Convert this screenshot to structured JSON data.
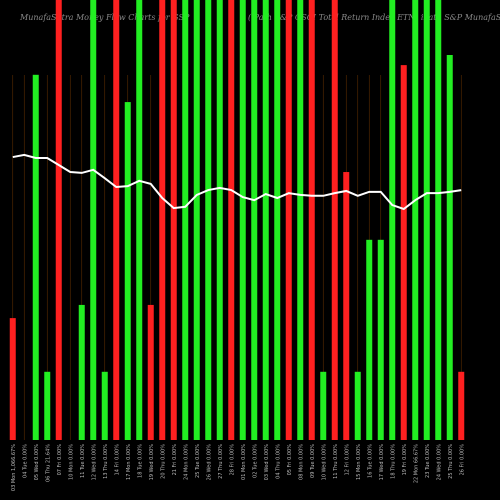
{
  "chart_data": {
    "type": "bar",
    "title": "MunafaSutra Money Flow Charts for GSP",
    "subtitle": "(iPath S&P GSCI Total Return Index ETN) iPath S&P MunafaSutra.com",
    "categories": [
      "03 Mon 1,066.67%",
      "04 Tue 0.00%",
      "05 Wed 0.00%",
      "06 Thu 21.64%",
      "07 Fri 0.00%",
      "10 Mon 0.00%",
      "11 Tue 0.00%",
      "12 Wed 0.00%",
      "13 Thu 0.00%",
      "14 Fri 0.00%",
      "17 Mon 0.00%",
      "18 Tue 0.00%",
      "19 Wed 0.00%",
      "20 Thu 0.00%",
      "21 Fri 0.00%",
      "24 Mon 0.00%",
      "25 Tue 0.00%",
      "26 Wed 0.00%",
      "27 Thu 0.00%",
      "28 Fri 0.00%",
      "01 Mon 0.00%",
      "02 Tue 0.00%",
      "03 Wed 0.00%",
      "04 Thu 0.00%",
      "05 Fri 0.00%",
      "08 Mon 0.00%",
      "09 Tue 0.00%",
      "10 Wed 0.00%",
      "11 Thu 0.00%",
      "12 Fri 0.00%",
      "15 Mon 0.00%",
      "16 Tue 0.00%",
      "17 Wed 0.00%",
      "18 Thu 0.00%",
      "19 Fri 0.00%",
      "22 Mon 66.67%",
      "23 Tue 0.00%",
      "24 Wed 0.00%",
      "25 Thu 0.00%",
      "26 Fri 0.00%"
    ],
    "values": [
      27.7,
      0,
      83,
      15.5,
      100,
      0,
      30.7,
      100,
      15.5,
      100,
      76.8,
      100,
      30.7,
      100,
      100,
      100,
      100,
      100,
      100,
      100,
      100,
      100,
      100,
      100,
      100,
      100,
      100,
      15.5,
      100,
      60.9,
      15.5,
      45.5,
      45.5,
      100,
      85.2,
      100,
      100,
      100,
      87.5,
      15.5
    ],
    "colors": [
      "#ff2020",
      "#22dd22",
      "#22ee22",
      "#22ee22",
      "#ff2020",
      "#ff2020",
      "#22ee22",
      "#22ee22",
      "#22ee22",
      "#ff2020",
      "#22ee22",
      "#22ee22",
      "#ff2020",
      "#ff2020",
      "#ff2020",
      "#22ee22",
      "#22ee22",
      "#22ee22",
      "#22ee22",
      "#ff2020",
      "#22ee22",
      "#22ee22",
      "#22ee22",
      "#22ee22",
      "#ff2020",
      "#22ee22",
      "#ff2020",
      "#22ee22",
      "#ff2020",
      "#ff2020",
      "#22ee22",
      "#22ee22",
      "#22ee22",
      "#22ee22",
      "#ff2020",
      "#22ee22",
      "#22ee22",
      "#22ee22",
      "#22ee22",
      "#ff2020"
    ],
    "line": {
      "color": "#ffffff",
      "values": [
        64.3,
        64.8,
        64.1,
        64.1,
        62.5,
        60.9,
        60.7,
        61.4,
        59.5,
        57.5,
        57.7,
        58.9,
        58.2,
        55,
        52.7,
        53,
        55.7,
        56.8,
        57.3,
        56.8,
        55.2,
        54.5,
        55.9,
        55,
        56.1,
        55.7,
        55.5,
        55.5,
        56.1,
        56.6,
        55.5,
        56.4,
        56.4,
        53.4,
        52.5,
        54.5,
        56.1,
        56.1,
        56.4,
        56.8
      ]
    },
    "ylim": [
      0,
      100
    ]
  }
}
